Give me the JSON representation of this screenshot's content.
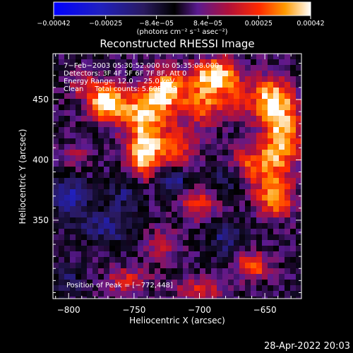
{
  "chart_data": {
    "type": "heatmap",
    "title": "Reconstructed RHESSI Image",
    "xlabel": "Heliocentric X (arcsec)",
    "ylabel": "Heliocentric Y (arcsec)",
    "xlim": [
      -812,
      -622
    ],
    "ylim": [
      285,
      488
    ],
    "xticks": [
      -800,
      -750,
      -700,
      -650
    ],
    "xtick_labels": [
      "−800",
      "−750",
      "−700",
      "−650"
    ],
    "yticks": [
      350,
      400,
      450
    ],
    "ytick_labels": [
      "350",
      "400",
      "450"
    ],
    "colorbar": {
      "range": [
        -0.00042,
        0.00042
      ],
      "ticks": [
        -0.00042,
        -0.00025,
        -8.4e-05,
        8.4e-05,
        0.00025,
        0.00042
      ],
      "tick_labels": [
        "−0.00042",
        "−0.00025",
        "−8.4e−05",
        "8.4e−05",
        "0.00025",
        "0.00042"
      ],
      "unit_label": "(photons cm⁻² s⁻¹ asec⁻²)",
      "colors": [
        "#0000ff",
        "#2020c0",
        "#2a1a60",
        "#000000",
        "#5a1a90",
        "#b0103a",
        "#ff2a00",
        "#ff9a00",
        "#ffffff"
      ]
    },
    "annotations": [
      "7−Feb−2003 05:30:52.000 to 05:35:08.000",
      "Detectors: 3F 4F 5F 6F 7F 8F, Att 0",
      "Energy Range: 12.0 − 25.0 keV",
      "Clean     Total counts: 5.60E+03",
      "Position of Peak = [−772,448]"
    ],
    "peak": [
      -772,
      448
    ],
    "blobs": [
      {
        "x": -772,
        "y": 448,
        "amp": 1.0,
        "sx": 9,
        "sy": 10
      },
      {
        "x": -743,
        "y": 440,
        "amp": 0.8,
        "sx": 16,
        "sy": 14
      },
      {
        "x": -725,
        "y": 460,
        "amp": 0.75,
        "sx": 10,
        "sy": 12
      },
      {
        "x": -742,
        "y": 405,
        "amp": 0.95,
        "sx": 9,
        "sy": 15
      },
      {
        "x": -718,
        "y": 410,
        "amp": 0.55,
        "sx": 12,
        "sy": 12
      },
      {
        "x": -696,
        "y": 450,
        "amp": 0.7,
        "sx": 12,
        "sy": 15
      },
      {
        "x": -686,
        "y": 472,
        "amp": 0.85,
        "sx": 12,
        "sy": 9
      },
      {
        "x": -672,
        "y": 452,
        "amp": 0.45,
        "sx": 7,
        "sy": 9
      },
      {
        "x": -645,
        "y": 450,
        "amp": 0.9,
        "sx": 12,
        "sy": 13
      },
      {
        "x": -637,
        "y": 418,
        "amp": 0.9,
        "sx": 10,
        "sy": 18
      },
      {
        "x": -658,
        "y": 395,
        "amp": 0.65,
        "sx": 14,
        "sy": 12
      },
      {
        "x": -642,
        "y": 368,
        "amp": 0.75,
        "sx": 10,
        "sy": 12
      },
      {
        "x": -700,
        "y": 365,
        "amp": 0.55,
        "sx": 10,
        "sy": 10
      },
      {
        "x": -730,
        "y": 330,
        "amp": 0.35,
        "sx": 10,
        "sy": 10
      },
      {
        "x": -755,
        "y": 300,
        "amp": 0.45,
        "sx": 12,
        "sy": 8
      },
      {
        "x": -660,
        "y": 312,
        "amp": 0.7,
        "sx": 9,
        "sy": 8
      },
      {
        "x": -700,
        "y": 292,
        "amp": 0.5,
        "sx": 12,
        "sy": 7
      },
      {
        "x": -795,
        "y": 400,
        "amp": 0.3,
        "sx": 8,
        "sy": 10
      },
      {
        "x": -790,
        "y": 462,
        "amp": 0.4,
        "sx": 8,
        "sy": 8
      }
    ],
    "cold_spots": [
      {
        "x": -800,
        "y": 370,
        "amp": 0.55,
        "sx": 10,
        "sy": 14
      },
      {
        "x": -770,
        "y": 345,
        "amp": 0.45,
        "sx": 14,
        "sy": 10
      },
      {
        "x": -755,
        "y": 372,
        "amp": 0.4,
        "sx": 9,
        "sy": 9
      },
      {
        "x": -720,
        "y": 383,
        "amp": 0.5,
        "sx": 10,
        "sy": 8
      },
      {
        "x": -680,
        "y": 385,
        "amp": 0.45,
        "sx": 10,
        "sy": 9
      },
      {
        "x": -680,
        "y": 335,
        "amp": 0.4,
        "sx": 10,
        "sy": 10
      },
      {
        "x": -800,
        "y": 300,
        "amp": 0.35,
        "sx": 8,
        "sy": 8
      }
    ]
  },
  "footer": {
    "timestamp": "28-Apr-2022 20:03"
  }
}
